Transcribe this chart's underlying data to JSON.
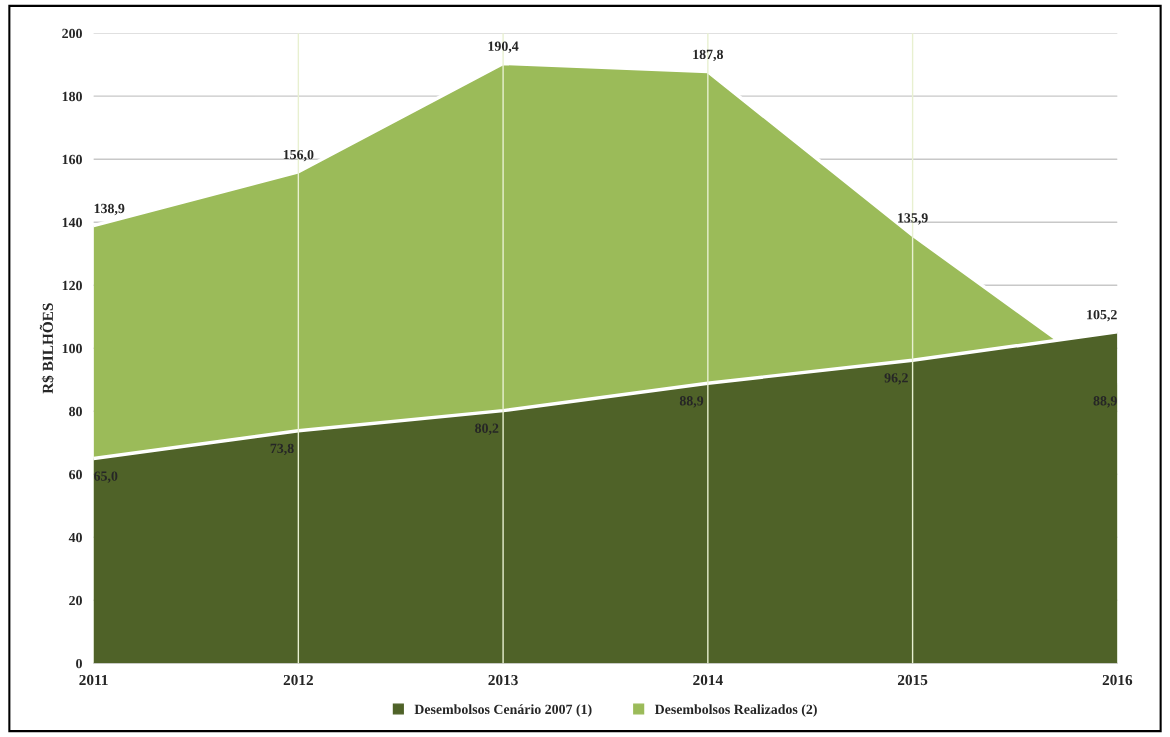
{
  "chart_data": {
    "type": "area",
    "ylabel": "R$ BILHÕES",
    "categories": [
      "2011",
      "2012",
      "2013",
      "2014",
      "2015",
      "2016"
    ],
    "series": [
      {
        "name": "Desembolsos Realizados (2)",
        "color": "#9bbb59",
        "values": [
          138.9,
          156.0,
          190.4,
          187.8,
          135.9,
          88.9
        ],
        "value_labels": [
          "138,9",
          "156,0",
          "190,4",
          "187,8",
          "135,9",
          "88,9"
        ]
      },
      {
        "name": "Desembolsos Cenário 2007 (1)",
        "color": "#4f6228",
        "values": [
          65.0,
          73.8,
          80.2,
          88.9,
          96.2,
          105.2
        ],
        "value_labels": [
          "65,0",
          "73,8",
          "80,2",
          "88,9",
          "96,2",
          "105,2"
        ]
      }
    ],
    "ylim": [
      0,
      200
    ],
    "yticks": [
      0,
      20,
      40,
      60,
      80,
      100,
      120,
      140,
      160,
      180,
      200
    ],
    "grid": true,
    "legend": "bottom"
  }
}
